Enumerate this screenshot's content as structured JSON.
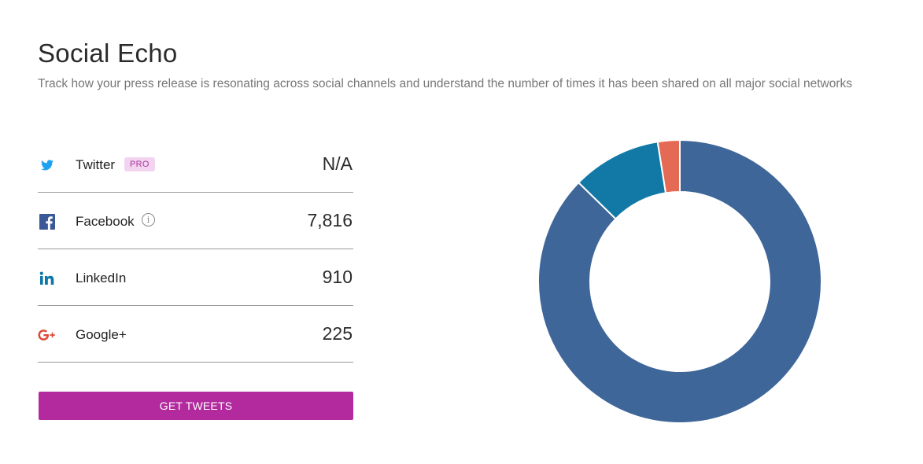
{
  "header": {
    "title": "Social Echo",
    "subtitle": "Track how your press release is resonating across social channels and understand the number of times it has been shared on all major social networks"
  },
  "stats": [
    {
      "network": "Twitter",
      "icon": "twitter-icon",
      "badge": "PRO",
      "value": "N/A"
    },
    {
      "network": "Facebook",
      "icon": "facebook-icon",
      "info_icon": "info-icon",
      "value": "7,816"
    },
    {
      "network": "LinkedIn",
      "icon": "linkedin-icon",
      "value": "910"
    },
    {
      "network": "Google+",
      "icon": "google-plus-icon",
      "value": "225"
    }
  ],
  "actions": {
    "get_tweets_label": "GET TWEETS"
  },
  "colors": {
    "twitter": "#1da1f2",
    "facebook": "#3b5998",
    "linkedin": "#0e76a8",
    "google_plus": "#dd4b39",
    "button": "#b22a9e",
    "badge_bg": "#f3d4f0",
    "badge_text": "#a8389c"
  },
  "chart_data": {
    "type": "pie",
    "style": "donut",
    "categories": [
      "Facebook",
      "LinkedIn",
      "Google+"
    ],
    "values": [
      7816,
      910,
      225
    ],
    "colors": [
      "#3f6699",
      "#1279a6",
      "#e56a55"
    ],
    "title": "",
    "legend": "none"
  }
}
